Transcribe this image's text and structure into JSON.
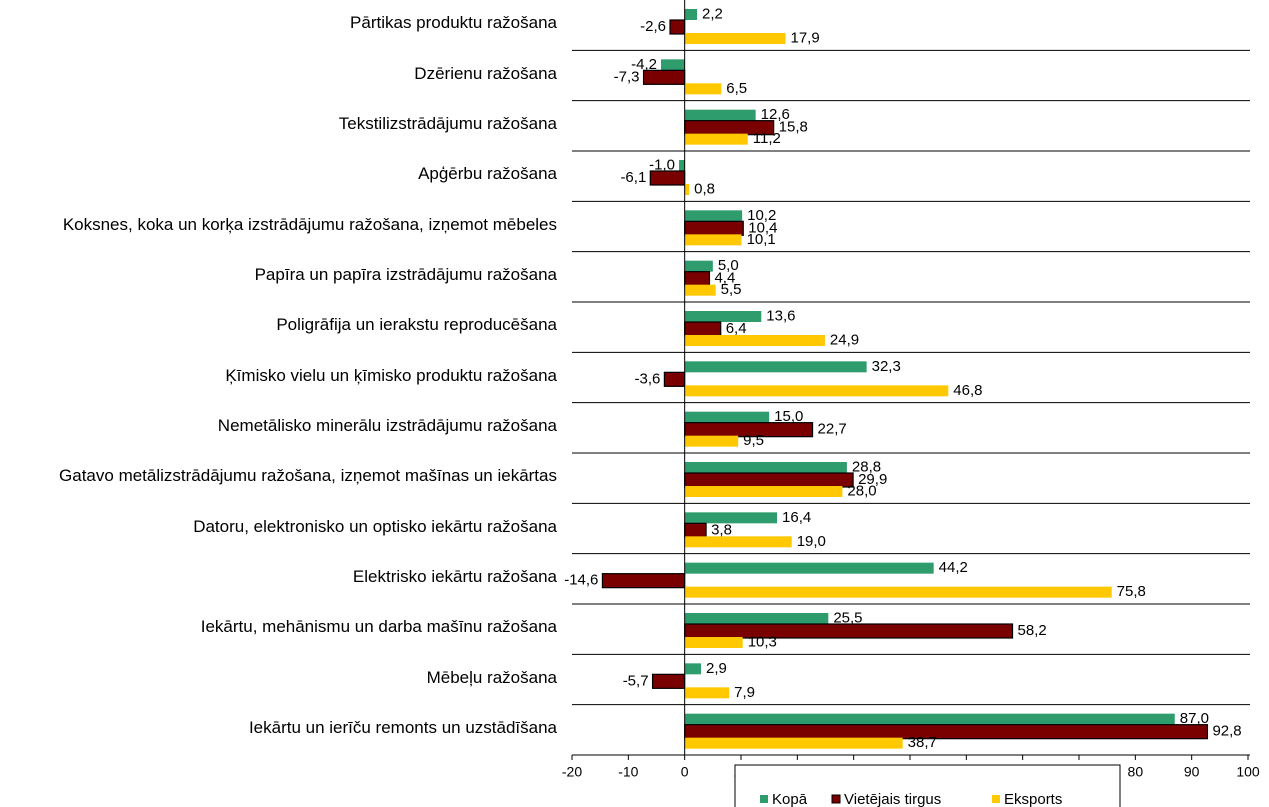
{
  "chart_data": {
    "type": "bar",
    "orientation": "horizontal",
    "categories": [
      "Pārtikas produktu ražošana",
      "Dzērienu ražošana",
      "Tekstilizstrādājumu ražošana",
      "Apģērbu ražošana",
      "Koksnes, koka un korķa izstrādājumu ražošana, izņemot mēbeles",
      "Papīra un papīra izstrādājumu ražošana",
      "Poligrāfija un ierakstu reproducēšana",
      "Ķīmisko vielu un ķīmisko produktu ražošana",
      "Nemetālisko minerālu izstrādājumu ražošana",
      "Gatavo metālizstrādājumu ražošana, izņemot mašīnas un iekārtas",
      "Datoru, elektronisko un optisko iekārtu ražošana",
      "Elektrisko iekārtu ražošana",
      "Iekārtu, mehānismu un darba mašīnu ražošana",
      "Mēbeļu ražošana",
      "Iekārtu un ierīču remonts un uzstādīšana"
    ],
    "series": [
      {
        "name": "Kopā",
        "color": "#2e9c6c",
        "values": [
          2.2,
          -4.2,
          12.6,
          -1.0,
          10.2,
          5.0,
          13.6,
          32.3,
          15.0,
          28.8,
          16.4,
          44.2,
          25.5,
          2.9,
          87.0
        ],
        "value_labels": [
          "2,2",
          "-4,2",
          "12,6",
          "-1,0",
          "10,2",
          "5,0",
          "13,6",
          "32,3",
          "15,0",
          "28,8",
          "16,4",
          "44,2",
          "25,5",
          "2,9",
          "87,0"
        ]
      },
      {
        "name": "Vietējais tirgus",
        "color": "#7a0000",
        "values": [
          -2.6,
          -7.3,
          15.8,
          -6.1,
          10.4,
          4.4,
          6.4,
          -3.6,
          22.7,
          29.9,
          3.8,
          -14.6,
          58.2,
          -5.7,
          92.8
        ],
        "value_labels": [
          "-2,6",
          "-7,3",
          "15,8",
          "-6,1",
          "10,4",
          "4,4",
          "6,4",
          "-3,6",
          "22,7",
          "29,9",
          "3,8",
          "-14,6",
          "58,2",
          "-5,7",
          "92,8"
        ]
      },
      {
        "name": "Eksports",
        "color": "#ffc800",
        "values": [
          17.9,
          6.5,
          11.2,
          0.8,
          10.1,
          5.5,
          24.9,
          46.8,
          9.5,
          28.0,
          19.0,
          75.8,
          10.3,
          7.9,
          38.7
        ],
        "value_labels": [
          "17,9",
          "6,5",
          "11,2",
          "0,8",
          "10,1",
          "5,5",
          "24,9",
          "46,8",
          "9,5",
          "28,0",
          "19,0",
          "75,8",
          "10,3",
          "7,9",
          "38,7"
        ]
      }
    ],
    "xlim": [
      -20,
      100
    ],
    "xticks": [
      -20,
      -10,
      0,
      10,
      20,
      30,
      40,
      50,
      60,
      70,
      80,
      90,
      100
    ],
    "grid": true,
    "legend": "bottom"
  }
}
